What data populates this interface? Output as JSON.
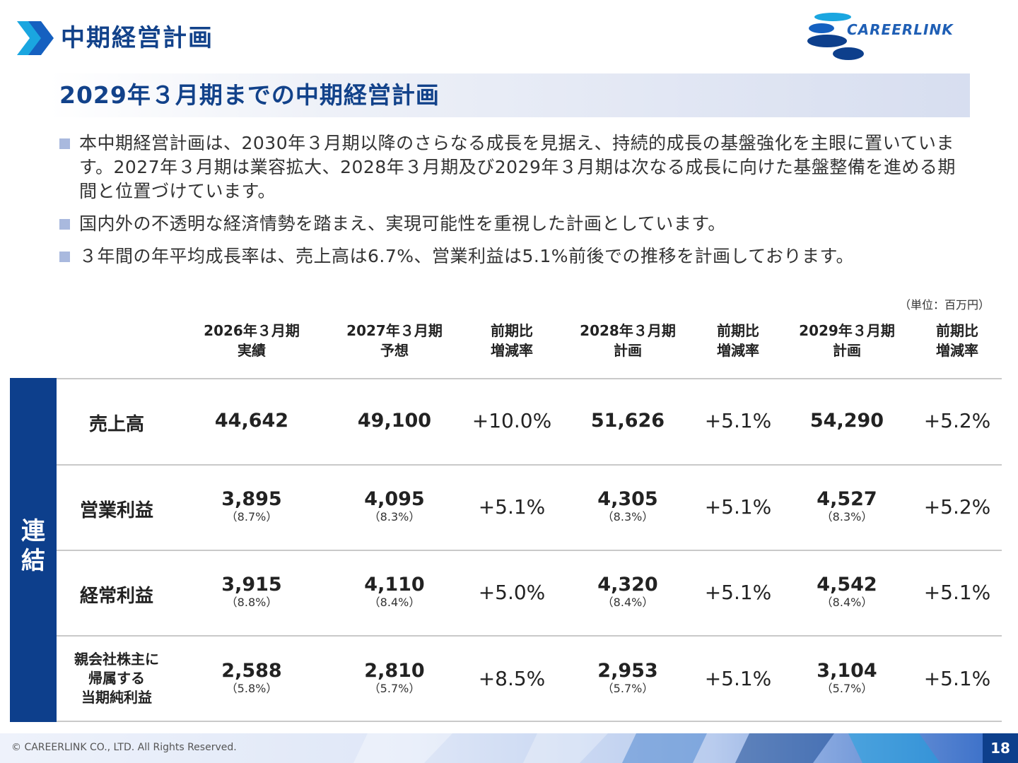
{
  "header": {
    "title": "中期経営計画",
    "logo_text": "CAREERLINK"
  },
  "banner": {
    "title": "2029年３月期までの中期経営計画"
  },
  "bullets": [
    {
      "text": "本中期経営計画は、2030年３月期以降のさらなる成長を見据え、持続的成長の基盤強化を主眼に置いています。2027年３月期は業容拡大、2028年３月期及び2029年３月期は次なる成長に向けた基盤整備を進める期間と位置づけています。"
    },
    {
      "text": "国内外の不透明な経済情勢を踏まえ、実現可能性を重視した計画としています。"
    },
    {
      "text": "３年間の年平均成長率は、売上高は6.7%、営業利益は5.1%前後での推移を計画しております。"
    }
  ],
  "table": {
    "unit": "（単位：百万円）",
    "side_label": "連\n結",
    "headers": [
      "2026年３月期\n実績",
      "2027年３月期\n予想",
      "前期比\n増減率",
      "2028年３月期\n計画",
      "前期比\n増減率",
      "2029年３月期\n計画",
      "前期比\n増減率"
    ],
    "rows": [
      {
        "label": "売上高",
        "c1": "44,642",
        "c1s": "",
        "c2": "49,100",
        "c2s": "",
        "c3": "+10.0%",
        "c4": "51,626",
        "c4s": "",
        "c5": "+5.1%",
        "c6": "54,290",
        "c6s": "",
        "c7": "+5.2%"
      },
      {
        "label": "営業利益",
        "c1": "3,895",
        "c1s": "（8.7%）",
        "c2": "4,095",
        "c2s": "（8.3%）",
        "c3": "+5.1%",
        "c4": "4,305",
        "c4s": "（8.3%）",
        "c5": "+5.1%",
        "c6": "4,527",
        "c6s": "（8.3%）",
        "c7": "+5.2%"
      },
      {
        "label": "経常利益",
        "c1": "3,915",
        "c1s": "（8.8%）",
        "c2": "4,110",
        "c2s": "（8.4%）",
        "c3": "+5.0%",
        "c4": "4,320",
        "c4s": "（8.4%）",
        "c5": "+5.1%",
        "c6": "4,542",
        "c6s": "（8.4%）",
        "c7": "+5.1%"
      },
      {
        "label": "親会社株主に\n帰属する\n当期純利益",
        "c1": "2,588",
        "c1s": "（5.8%）",
        "c2": "2,810",
        "c2s": "（5.7%）",
        "c3": "+8.5%",
        "c4": "2,953",
        "c4s": "（5.7%）",
        "c5": "+5.1%",
        "c6": "3,104",
        "c6s": "（5.7%）",
        "c7": "+5.1%"
      }
    ]
  },
  "footer": {
    "copyright": "© CAREERLINK CO., LTD. All Rights Reserved.",
    "page": "18"
  },
  "colors": {
    "brand_navy": "#0d3f8c",
    "title_blue": "#12428a",
    "accent_cyan": "#1aa6e0"
  }
}
